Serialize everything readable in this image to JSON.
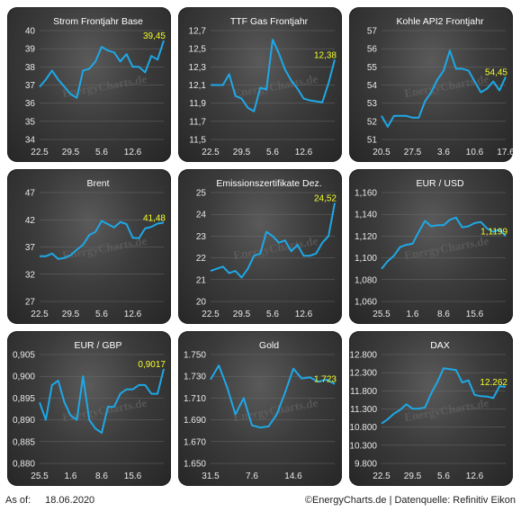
{
  "chart_data": [
    {
      "type": "line",
      "title": "Strom Frontjahr Base",
      "ylim": [
        34,
        40
      ],
      "yticks": [
        "34",
        "35",
        "36",
        "37",
        "38",
        "39",
        "40"
      ],
      "xticks": [
        {
          "label": "22.5",
          "x": 0
        },
        {
          "label": "29.5",
          "x": 5
        },
        {
          "label": "5.6",
          "x": 10
        },
        {
          "label": "12.6",
          "x": 15
        }
      ],
      "x": [
        0,
        1,
        2,
        3,
        4,
        5,
        6,
        7,
        8,
        9,
        10,
        11,
        12,
        13,
        14,
        15,
        16,
        17,
        18,
        19,
        20
      ],
      "values": [
        36.9,
        37.3,
        37.8,
        37.3,
        36.9,
        36.5,
        36.3,
        37.8,
        37.9,
        38.3,
        39.1,
        38.9,
        38.8,
        38.3,
        38.7,
        38.0,
        38.0,
        37.7,
        38.6,
        38.4,
        39.45
      ],
      "last_label": "39,45"
    },
    {
      "type": "line",
      "title": "TTF Gas Frontjahr",
      "ylim": [
        11.5,
        12.7
      ],
      "yticks": [
        "11,5",
        "11,7",
        "11,9",
        "12,1",
        "12,3",
        "12,5",
        "12,7"
      ],
      "xticks": [
        {
          "label": "22.5",
          "x": 0
        },
        {
          "label": "29.5",
          "x": 5
        },
        {
          "label": "5.6",
          "x": 10
        },
        {
          "label": "12.6",
          "x": 15
        }
      ],
      "x": [
        0,
        1,
        2,
        3,
        4,
        5,
        6,
        7,
        8,
        9,
        10,
        11,
        12,
        13,
        14,
        15,
        16,
        17,
        18,
        19,
        20
      ],
      "values": [
        12.1,
        12.1,
        12.1,
        12.22,
        11.98,
        11.95,
        11.85,
        11.81,
        12.07,
        12.05,
        12.6,
        12.45,
        12.27,
        12.15,
        12.06,
        11.95,
        11.93,
        11.92,
        11.91,
        12.12,
        12.38
      ],
      "last_label": "12,38"
    },
    {
      "type": "line",
      "title": "Kohle API2 Frontjahr",
      "ylim": [
        51,
        57
      ],
      "yticks": [
        "51",
        "52",
        "53",
        "54",
        "55",
        "56",
        "57"
      ],
      "xticks": [
        {
          "label": "20.5",
          "x": 0
        },
        {
          "label": "27.5",
          "x": 5
        },
        {
          "label": "3.6",
          "x": 10
        },
        {
          "label": "10.6",
          "x": 15
        },
        {
          "label": "17.6",
          "x": 20
        }
      ],
      "x": [
        0,
        1,
        2,
        3,
        4,
        5,
        6,
        7,
        8,
        9,
        10,
        11,
        12,
        13,
        14,
        15,
        16,
        17,
        18,
        19,
        20
      ],
      "values": [
        52.3,
        51.7,
        52.3,
        52.3,
        52.3,
        52.2,
        52.2,
        53.1,
        53.6,
        54.3,
        54.8,
        55.9,
        54.9,
        54.9,
        54.8,
        54.2,
        53.6,
        53.8,
        54.2,
        53.7,
        54.45
      ],
      "last_label": "54,45"
    },
    {
      "type": "line",
      "title": "Brent",
      "ylim": [
        27,
        47
      ],
      "yticks": [
        "27",
        "32",
        "37",
        "42",
        "47"
      ],
      "xticks": [
        {
          "label": "22.5",
          "x": 0
        },
        {
          "label": "29.5",
          "x": 5
        },
        {
          "label": "5.6",
          "x": 10
        },
        {
          "label": "12.6",
          "x": 15
        }
      ],
      "x": [
        0,
        1,
        2,
        3,
        4,
        5,
        6,
        7,
        8,
        9,
        10,
        11,
        12,
        13,
        14,
        15,
        16,
        17,
        18,
        19,
        20
      ],
      "values": [
        35.3,
        35.3,
        35.8,
        34.8,
        35.0,
        35.5,
        36.5,
        37.4,
        39.2,
        39.8,
        41.8,
        41.2,
        40.6,
        41.6,
        41.2,
        38.7,
        38.6,
        40.4,
        40.7,
        41.3,
        41.48
      ],
      "last_label": "41,48"
    },
    {
      "type": "line",
      "title": "Emissionszertifikate Dez.",
      "ylim": [
        20,
        25
      ],
      "yticks": [
        "20",
        "21",
        "22",
        "23",
        "24",
        "25"
      ],
      "xticks": [
        {
          "label": "22.5",
          "x": 0
        },
        {
          "label": "29.5",
          "x": 5
        },
        {
          "label": "5.6",
          "x": 10
        },
        {
          "label": "12.6",
          "x": 15
        }
      ],
      "x": [
        0,
        1,
        2,
        3,
        4,
        5,
        6,
        7,
        8,
        9,
        10,
        11,
        12,
        13,
        14,
        15,
        16,
        17,
        18,
        19,
        20
      ],
      "values": [
        21.4,
        21.5,
        21.6,
        21.3,
        21.4,
        21.1,
        21.5,
        22.1,
        22.2,
        23.2,
        23.0,
        22.7,
        22.8,
        22.3,
        22.6,
        22.1,
        22.1,
        22.2,
        22.7,
        23.0,
        24.52
      ],
      "last_label": "24,52"
    },
    {
      "type": "line",
      "title": "EUR / USD",
      "ylim": [
        1.06,
        1.16
      ],
      "yticks": [
        "1,060",
        "1,080",
        "1,100",
        "1,120",
        "1,140",
        "1,160"
      ],
      "xticks": [
        {
          "label": "25.5",
          "x": 0
        },
        {
          "label": "1.6",
          "x": 5
        },
        {
          "label": "8.6",
          "x": 10
        },
        {
          "label": "15.6",
          "x": 15
        }
      ],
      "x": [
        0,
        1,
        2,
        3,
        4,
        5,
        6,
        7,
        8,
        9,
        10,
        11,
        12,
        13,
        14,
        15,
        16,
        17,
        18,
        19,
        20
      ],
      "values": [
        1.09,
        1.097,
        1.102,
        1.11,
        1.112,
        1.113,
        1.124,
        1.134,
        1.129,
        1.13,
        1.13,
        1.135,
        1.137,
        1.128,
        1.129,
        1.132,
        1.133,
        1.127,
        1.124,
        1.126,
        1.1199
      ],
      "last_label": "1,1199"
    },
    {
      "type": "line",
      "title": "EUR / GBP",
      "ylim": [
        0.88,
        0.905
      ],
      "yticks": [
        "0,880",
        "0,885",
        "0,890",
        "0,895",
        "0,900",
        "0,905"
      ],
      "xticks": [
        {
          "label": "25.5",
          "x": 0
        },
        {
          "label": "1.6",
          "x": 5
        },
        {
          "label": "8.6",
          "x": 10
        },
        {
          "label": "15.6",
          "x": 15
        }
      ],
      "x": [
        0,
        1,
        2,
        3,
        4,
        5,
        6,
        7,
        8,
        9,
        10,
        11,
        12,
        13,
        14,
        15,
        16,
        17,
        18,
        19,
        20
      ],
      "values": [
        0.894,
        0.89,
        0.898,
        0.899,
        0.894,
        0.891,
        0.89,
        0.9,
        0.89,
        0.888,
        0.887,
        0.893,
        0.893,
        0.896,
        0.897,
        0.897,
        0.898,
        0.898,
        0.896,
        0.896,
        0.9017
      ],
      "last_label": "0,9017"
    },
    {
      "type": "line",
      "title": "Gold",
      "ylim": [
        1650,
        1750
      ],
      "yticks": [
        "1.650",
        "1.670",
        "1.690",
        "1.710",
        "1.730",
        "1.750"
      ],
      "xticks": [
        {
          "label": "31.5",
          "x": 0
        },
        {
          "label": "7.6",
          "x": 5
        },
        {
          "label": "14.6",
          "x": 10
        }
      ],
      "x": [
        0,
        1,
        2,
        3,
        4,
        5,
        6,
        7,
        8,
        9,
        10,
        11,
        12,
        13,
        14,
        15
      ],
      "values": [
        1727,
        1740,
        1720,
        1695,
        1710,
        1685,
        1683,
        1684,
        1695,
        1715,
        1737,
        1728,
        1729,
        1725,
        1727,
        1723
      ],
      "last_label": "1.723"
    },
    {
      "type": "line",
      "title": "DAX",
      "ylim": [
        9800,
        13300
      ],
      "yticks": [
        "9.800",
        "10.300",
        "10.800",
        "11.300",
        "11.800",
        "12.300",
        "12.800"
      ],
      "xticks": [
        {
          "label": "22.5",
          "x": 0
        },
        {
          "label": "29.5",
          "x": 5
        },
        {
          "label": "5.6",
          "x": 10
        },
        {
          "label": "12.6",
          "x": 15
        }
      ],
      "x": [
        0,
        1,
        2,
        3,
        4,
        5,
        6,
        7,
        8,
        9,
        10,
        11,
        12,
        13,
        14,
        15,
        16,
        17,
        18,
        19,
        20
      ],
      "values": [
        11080,
        11220,
        11400,
        11520,
        11700,
        11560,
        11560,
        11600,
        12050,
        12420,
        12860,
        12830,
        12800,
        12400,
        12470,
        12000,
        11960,
        11950,
        11900,
        12280,
        12262
      ],
      "last_label": "12.262"
    }
  ],
  "watermark": "EnergyCharts.de",
  "footer": {
    "as_of_label": "As of:",
    "as_of_date": "18.06.2020",
    "source": "©EnergyCharts.de | Datenquelle: Refinitiv Eikon"
  }
}
